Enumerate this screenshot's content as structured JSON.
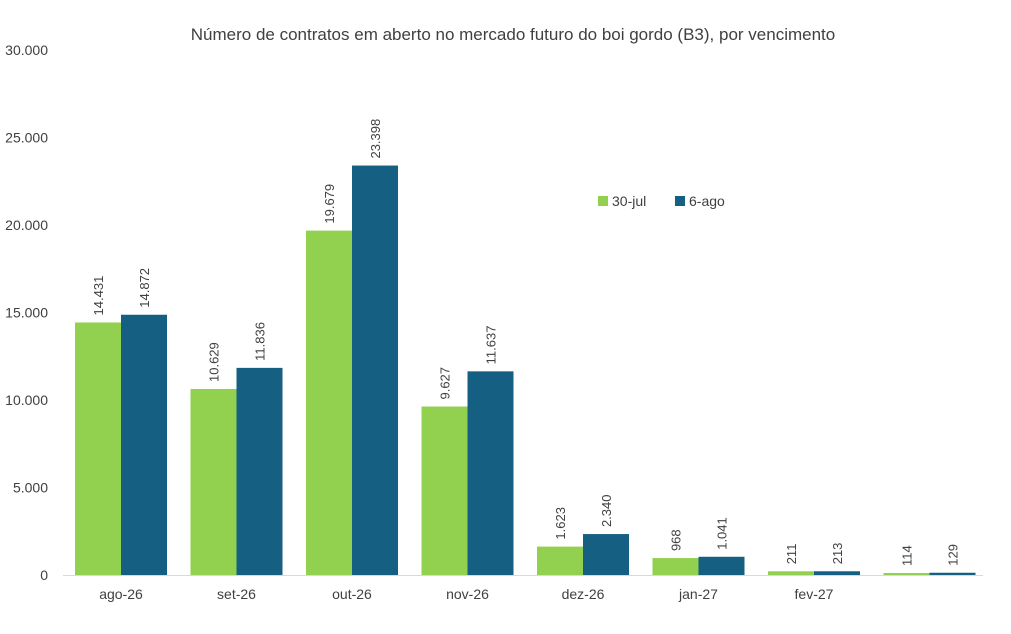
{
  "chart_data": {
    "type": "bar",
    "title": "Número de contratos em aberto no mercado futuro do boi gordo (B3), por vencimento",
    "categories": [
      "ago-26",
      "set-26",
      "out-26",
      "nov-26",
      "dez-26",
      "jan-27",
      "fev-27",
      ""
    ],
    "series": [
      {
        "name": "30-jul",
        "color": "#92d050",
        "values": [
          14431,
          10629,
          19679,
          9627,
          1623,
          968,
          211,
          114
        ],
        "labels": [
          "14.431",
          "10.629",
          "19.679",
          "9.627",
          "1.623",
          "968",
          "211",
          "114"
        ]
      },
      {
        "name": "6-ago",
        "color": "#156082",
        "values": [
          14872,
          11836,
          23398,
          11637,
          2340,
          1041,
          213,
          129
        ],
        "labels": [
          "14.872",
          "11.836",
          "23.398",
          "11.637",
          "2.340",
          "1.041",
          "213",
          "129"
        ]
      }
    ],
    "ylim": [
      0,
      30000
    ],
    "yticks": [
      0,
      5000,
      10000,
      15000,
      20000,
      25000,
      30000
    ],
    "ytick_labels": [
      "0",
      "5.000",
      "10.000",
      "15.000",
      "20.000",
      "25.000",
      "30.000"
    ],
    "grid": false,
    "legend_position": "top-right",
    "axis_color": "#d9d9d9",
    "text_color": "#404040"
  }
}
